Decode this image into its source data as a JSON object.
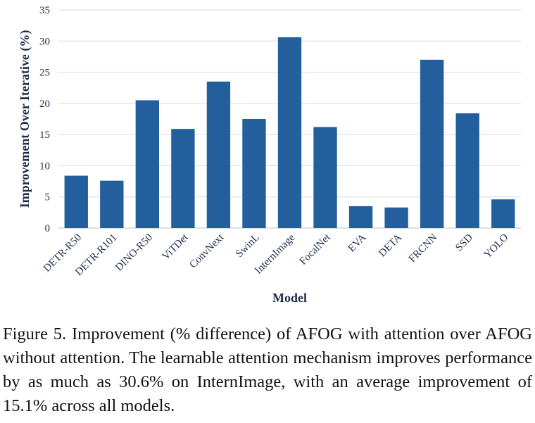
{
  "chart_data": {
    "type": "bar",
    "categories": [
      "DETR-R50",
      "DETR-R101",
      "DINO-R50",
      "ViTDet",
      "ConvNext",
      "SwinL",
      "InternImage",
      "FocalNet",
      "EVA",
      "DETA",
      "FRCNN",
      "SSD",
      "YOLO"
    ],
    "values": [
      8.4,
      7.6,
      20.5,
      15.9,
      23.5,
      17.5,
      30.6,
      16.2,
      3.5,
      3.3,
      27.0,
      18.4,
      4.6
    ],
    "xlabel": "Model",
    "ylabel": "Improvement Over Iterative (%)",
    "ylim": [
      0,
      35
    ],
    "yticks": [
      0,
      5,
      10,
      15,
      20,
      25,
      30,
      35
    ],
    "grid": true,
    "bar_color": "#235f9d",
    "grid_color": "#d6dbe3"
  },
  "caption": "Figure 5. Improvement (% difference) of AFOG with attention over AFOG without attention. The learnable attention mechanism improves performance by as much as 30.6% on InternImage, with an average improvement of 15.1% across all models."
}
